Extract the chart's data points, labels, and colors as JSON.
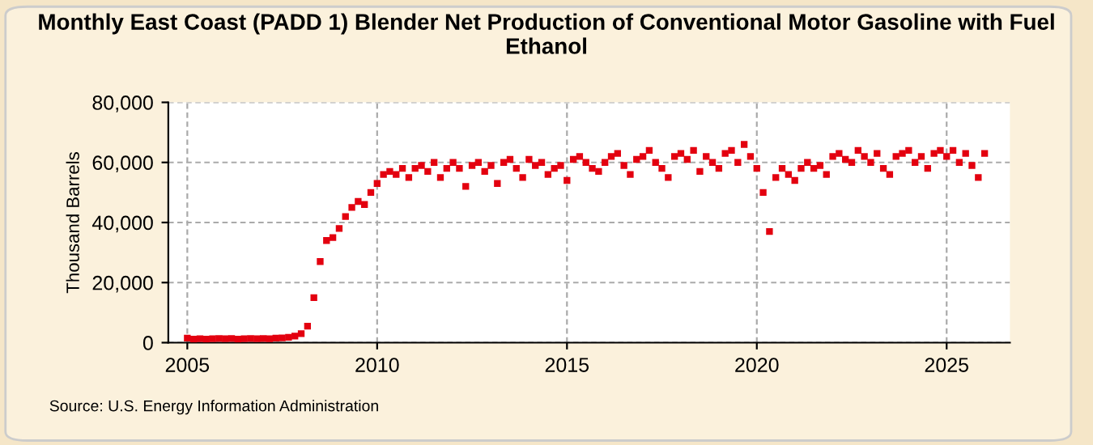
{
  "chart_data": {
    "type": "scatter",
    "title": "Monthly East Coast (PADD 1) Blender Net Production of Conventional Motor Gasoline with Fuel Ethanol",
    "ylabel": "Thousand Barrels",
    "annotations": [
      "Source: U.S. Energy Information Administration"
    ],
    "x": [
      "2005-01",
      "2005-03",
      "2005-05",
      "2005-07",
      "2005-09",
      "2005-11",
      "2006-01",
      "2006-03",
      "2006-05",
      "2006-07",
      "2006-09",
      "2006-11",
      "2007-01",
      "2007-03",
      "2007-05",
      "2007-07",
      "2007-09",
      "2007-11",
      "2008-01",
      "2008-03",
      "2008-05",
      "2008-07",
      "2008-09",
      "2008-11",
      "2009-01",
      "2009-03",
      "2009-05",
      "2009-07",
      "2009-09",
      "2009-11",
      "2010-01",
      "2010-03",
      "2010-05",
      "2010-07",
      "2010-09",
      "2010-11",
      "2011-01",
      "2011-03",
      "2011-05",
      "2011-07",
      "2011-09",
      "2011-11",
      "2012-01",
      "2012-03",
      "2012-05",
      "2012-07",
      "2012-09",
      "2012-11",
      "2013-01",
      "2013-03",
      "2013-05",
      "2013-07",
      "2013-09",
      "2013-11",
      "2014-01",
      "2014-03",
      "2014-05",
      "2014-07",
      "2014-09",
      "2014-11",
      "2015-01",
      "2015-03",
      "2015-05",
      "2015-07",
      "2015-09",
      "2015-11",
      "2016-01",
      "2016-03",
      "2016-05",
      "2016-07",
      "2016-09",
      "2016-11",
      "2017-01",
      "2017-03",
      "2017-05",
      "2017-07",
      "2017-09",
      "2017-11",
      "2018-01",
      "2018-03",
      "2018-05",
      "2018-07",
      "2018-09",
      "2018-11",
      "2019-01",
      "2019-03",
      "2019-05",
      "2019-07",
      "2019-09",
      "2019-11",
      "2020-01",
      "2020-03",
      "2020-05",
      "2020-07",
      "2020-09",
      "2020-11",
      "2021-01",
      "2021-03",
      "2021-05",
      "2021-07",
      "2021-09",
      "2021-11",
      "2022-01",
      "2022-03",
      "2022-05",
      "2022-07",
      "2022-09",
      "2022-11",
      "2023-01",
      "2023-03",
      "2023-05",
      "2023-07",
      "2023-09",
      "2023-11",
      "2024-01",
      "2024-03",
      "2024-05",
      "2024-07",
      "2024-09",
      "2024-11",
      "2025-01",
      "2025-03",
      "2025-05",
      "2025-07",
      "2025-09",
      "2025-11",
      "2026-01"
    ],
    "values": [
      1500,
      1200,
      1300,
      1200,
      1300,
      1400,
      1300,
      1400,
      1200,
      1300,
      1400,
      1300,
      1400,
      1300,
      1500,
      1600,
      1800,
      2200,
      3000,
      5500,
      15000,
      27000,
      34000,
      35000,
      38000,
      42000,
      45000,
      47000,
      46000,
      50000,
      53000,
      56000,
      57000,
      56000,
      58000,
      55000,
      58000,
      59000,
      57000,
      60000,
      55000,
      58000,
      60000,
      58000,
      52000,
      59000,
      60000,
      57000,
      59000,
      53000,
      60000,
      61000,
      58000,
      55000,
      61000,
      59000,
      60000,
      56000,
      58000,
      59000,
      54000,
      61000,
      62000,
      60000,
      58000,
      57000,
      60000,
      62000,
      63000,
      59000,
      56000,
      61000,
      62000,
      64000,
      60000,
      58000,
      55000,
      62000,
      63000,
      61000,
      64000,
      57000,
      62000,
      60000,
      58000,
      63000,
      64000,
      60000,
      66000,
      62000,
      58000,
      50000,
      37000,
      55000,
      58000,
      56000,
      54000,
      58000,
      60000,
      58000,
      59000,
      56000,
      62000,
      63000,
      61000,
      60000,
      64000,
      62000,
      60000,
      63000,
      58000,
      56000,
      62000,
      63000,
      64000,
      60000,
      62000,
      58000,
      63000,
      64000,
      62000,
      64000,
      60000,
      63000,
      59000,
      55000,
      63000
    ],
    "color": "#e3000f",
    "marker": "square",
    "grid": true,
    "xlim": [
      "2004-07",
      "2026-09"
    ],
    "xticks": [
      "2005",
      "2010",
      "2015",
      "2020",
      "2025"
    ],
    "ylim": [
      0,
      80000
    ],
    "yticks": [
      {
        "value": 0,
        "label": "0"
      },
      {
        "value": 20000,
        "label": "20,000"
      },
      {
        "value": 40000,
        "label": "40,000"
      },
      {
        "value": 60000,
        "label": "60,000"
      },
      {
        "value": 80000,
        "label": "80,000"
      }
    ]
  }
}
